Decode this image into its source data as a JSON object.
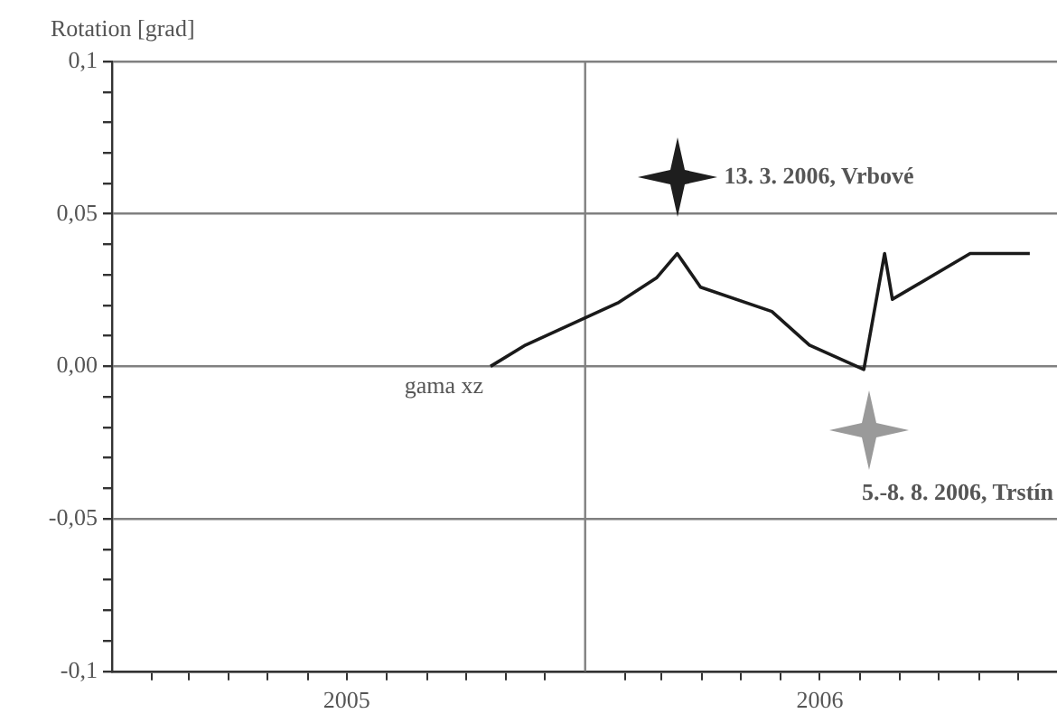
{
  "chart_data": {
    "type": "line",
    "ylabel": "Rotation [grad]",
    "series": [
      {
        "name": "gama xz",
        "color": "#1a1a1a",
        "x": [
          "2005-10-20",
          "2005-11-16",
          "2006-01-27",
          "2006-02-25",
          "2006-03-13",
          "2006-03-31",
          "2006-05-25",
          "2006-06-23",
          "2006-08-04",
          "2006-08-20",
          "2006-08-26",
          "2006-10-25",
          "2006-12-10"
        ],
        "values": [
          0,
          0.007,
          0.021,
          0.029,
          0.037,
          0.026,
          0.018,
          0.007,
          -0.001,
          0.037,
          0.022,
          0.037,
          0.037
        ]
      }
    ],
    "xlim": [
      "2005-01-01",
      "2006-12-31"
    ],
    "xticks": [
      {
        "value": "2005-02-01",
        "label": null
      },
      {
        "value": "2005-03-01",
        "label": null
      },
      {
        "value": "2005-04-01",
        "label": null
      },
      {
        "value": "2005-05-01",
        "label": null
      },
      {
        "value": "2005-06-01",
        "label": null
      },
      {
        "value": "2005-07-01",
        "label": "2005"
      },
      {
        "value": "2005-08-01",
        "label": null
      },
      {
        "value": "2005-09-01",
        "label": null
      },
      {
        "value": "2005-10-01",
        "label": null
      },
      {
        "value": "2005-11-01",
        "label": null
      },
      {
        "value": "2005-12-01",
        "label": null
      },
      {
        "value": "2006-02-01",
        "label": null
      },
      {
        "value": "2006-03-01",
        "label": null
      },
      {
        "value": "2006-04-01",
        "label": null
      },
      {
        "value": "2006-05-01",
        "label": null
      },
      {
        "value": "2006-06-01",
        "label": null
      },
      {
        "value": "2006-07-01",
        "label": "2006"
      },
      {
        "value": "2006-08-01",
        "label": null
      },
      {
        "value": "2006-09-01",
        "label": null
      },
      {
        "value": "2006-10-01",
        "label": null
      },
      {
        "value": "2006-11-01",
        "label": null
      },
      {
        "value": "2006-12-01",
        "label": null
      }
    ],
    "ylim": [
      -0.1,
      0.1
    ],
    "yticks": [
      {
        "value": -0.1,
        "label": "-0,1"
      },
      {
        "value": -0.09,
        "label": null
      },
      {
        "value": -0.08,
        "label": null
      },
      {
        "value": -0.07,
        "label": null
      },
      {
        "value": -0.06,
        "label": null
      },
      {
        "value": -0.05,
        "label": "-0,05"
      },
      {
        "value": -0.04,
        "label": null
      },
      {
        "value": -0.03,
        "label": null
      },
      {
        "value": -0.02,
        "label": null
      },
      {
        "value": -0.01,
        "label": null
      },
      {
        "value": 0,
        "label": "0,00"
      },
      {
        "value": 0.01,
        "label": null
      },
      {
        "value": 0.02,
        "label": null
      },
      {
        "value": 0.03,
        "label": null
      },
      {
        "value": 0.04,
        "label": null
      },
      {
        "value": 0.05,
        "label": "0,05"
      },
      {
        "value": 0.06,
        "label": null
      },
      {
        "value": 0.07,
        "label": null
      },
      {
        "value": 0.08,
        "label": null
      },
      {
        "value": 0.09,
        "label": null
      },
      {
        "value": 0.1,
        "label": "0,1"
      }
    ],
    "grid": "y",
    "legend": false,
    "marker": "none",
    "line_style": "solid",
    "ref_lines": [
      {
        "axis": "x",
        "value": "2006-01-01",
        "color": "#808080"
      }
    ],
    "annotations": [
      {
        "text": "13. 3. 2006, Vrbové",
        "x": "2006-03-13",
        "y": 0.062
      },
      {
        "text": "5.-8. 8. 2006, Trstín",
        "x": "2006-08-08",
        "y": -0.021
      }
    ]
  }
}
